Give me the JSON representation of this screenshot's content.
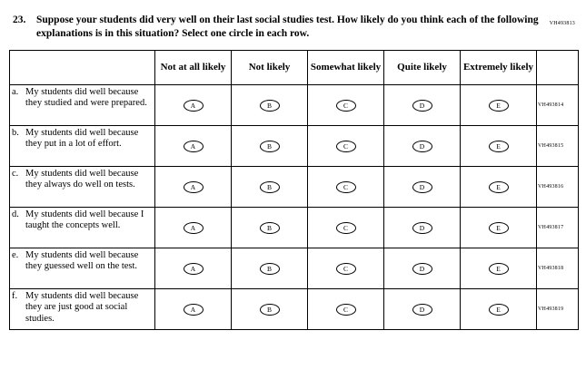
{
  "page": {
    "top_code": "VH493813"
  },
  "question": {
    "number": "23.",
    "text_pre": "Suppose your students did very well on their last social studies test. How likely do you think each of the following explanations is in this situation? Select ",
    "bold": "one",
    "text_post": " circle in each row."
  },
  "table": {
    "headers": [
      "Not at all likely",
      "Not likely",
      "Somewhat likely",
      "Quite likely",
      "Extremely likely"
    ],
    "options": [
      "A",
      "B",
      "C",
      "D",
      "E"
    ],
    "rows": [
      {
        "prefix": "a.",
        "label": "My students did well because they studied and were prepared.",
        "code": "VH493814"
      },
      {
        "prefix": "b.",
        "label": "My students did well because they put in a lot of effort.",
        "code": "VH493815"
      },
      {
        "prefix": "c.",
        "label": "My students did well because they always do well on tests.",
        "code": "VH493816"
      },
      {
        "prefix": "d.",
        "label": "My students did well because I taught the concepts well.",
        "code": "VH493817"
      },
      {
        "prefix": "e.",
        "label": "My students did well because they guessed well on the test.",
        "code": "VH493818"
      },
      {
        "prefix": "f.",
        "label": "My students did well because they are just good at social studies.",
        "code": "VH493819"
      }
    ]
  }
}
